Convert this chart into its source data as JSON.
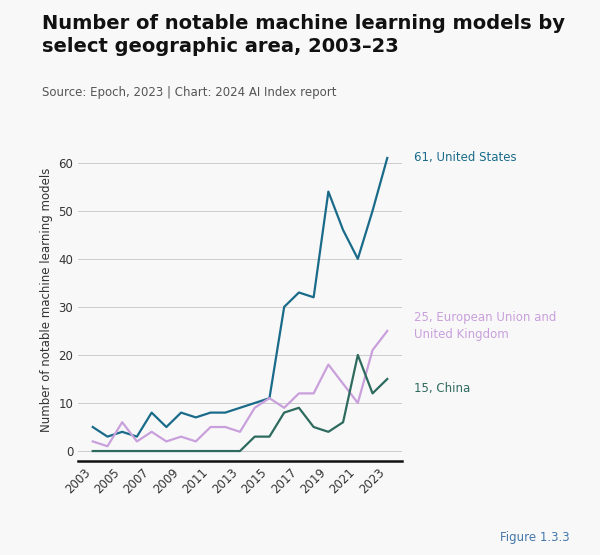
{
  "title_line1": "Number of notable machine learning models by",
  "title_line2": "select geographic area, 2003–23",
  "source": "Source: Epoch, 2023 | Chart: 2024 AI Index report",
  "figure_label": "Figure 1.3.3",
  "ylabel": "Number of notable machine learning models",
  "years": [
    2003,
    2004,
    2005,
    2006,
    2007,
    2008,
    2009,
    2010,
    2011,
    2012,
    2013,
    2014,
    2015,
    2016,
    2017,
    2018,
    2019,
    2020,
    2021,
    2022,
    2023
  ],
  "us_values": [
    5,
    3,
    4,
    3,
    8,
    5,
    8,
    7,
    8,
    8,
    9,
    10,
    11,
    30,
    33,
    32,
    54,
    46,
    40,
    50,
    61
  ],
  "eu_values": [
    2,
    1,
    6,
    2,
    4,
    2,
    3,
    2,
    5,
    5,
    4,
    9,
    11,
    9,
    12,
    12,
    18,
    14,
    10,
    21,
    25
  ],
  "cn_values": [
    0,
    0,
    0,
    0,
    0,
    0,
    0,
    0,
    0,
    0,
    0,
    3,
    3,
    8,
    9,
    5,
    4,
    6,
    20,
    12,
    15
  ],
  "us_color": "#1a6b8a",
  "eu_color": "#c9a0dc",
  "cn_color": "#2e6b5e",
  "us_label": "61, United States",
  "eu_label": "25, European Union and\nUnited Kingdom",
  "cn_label": "15, China",
  "bg_color": "#f8f8f8",
  "ylim": [
    -2,
    65
  ],
  "yticks": [
    0,
    10,
    20,
    30,
    40,
    50,
    60
  ],
  "title_fontsize": 14,
  "source_fontsize": 8.5,
  "label_fontsize": 8.5,
  "axis_fontsize": 8.5
}
